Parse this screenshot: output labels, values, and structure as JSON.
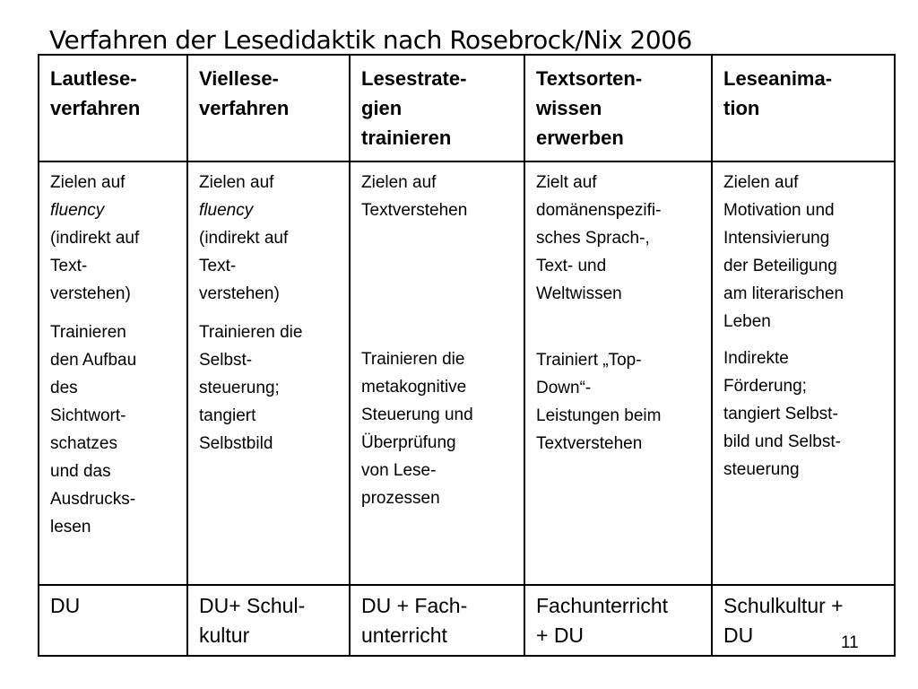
{
  "title": "Verfahren der Lesedidaktik nach Rosebrock/Nix 2006",
  "page_number": "11",
  "headers": [
    "Lautlese-\nverfahren",
    "Viellese-\nverfahren",
    "Lesestrate-\ngien\ntrainieren",
    "Textsorten-\nwissen\nerwerben",
    "Leseanima-\ntion"
  ],
  "goals": {
    "col1": {
      "pre": "Zielen auf",
      "italic": "fluency",
      "post": "(indirekt auf\nText-\nverstehen)"
    },
    "col2": {
      "pre": "Zielen auf",
      "italic": "fluency",
      "post": "(indirekt auf\nText-\nverstehen)"
    },
    "col3": "Zielen auf\nTextverstehen",
    "col4": "Zielt auf\ndomänenspezifi-\nsches Sprach-,\nText- und\nWeltwissen",
    "col5": "Zielen auf\nMotivation und\nIntensivierung\nder Beteiligung\nam literarischen\nLeben"
  },
  "training": [
    "Trainieren\nden Aufbau\ndes\nSichtwort-\nschatzes\nund das\nAusdrucks-\nlesen",
    "Trainieren die\nSelbst-\nsteuerung;\ntangiert\nSelbstbild",
    "Trainieren die\nmetakognitive\nSteuerung und\nÜberprüfung\nvon Lese-\nprozessen",
    "Trainiert „Top-\nDown“-\nLeistungen beim\nTextverstehen",
    "Indirekte\nFörderung;\ntangiert Selbst-\nbild und Selbst-\nsteuerung"
  ],
  "contexts": [
    "DU",
    "DU+ Schul-\nkultur",
    "DU + Fach-\nunterricht",
    "Fachunterricht\n+ DU",
    "Schulkultur +\nDU"
  ]
}
